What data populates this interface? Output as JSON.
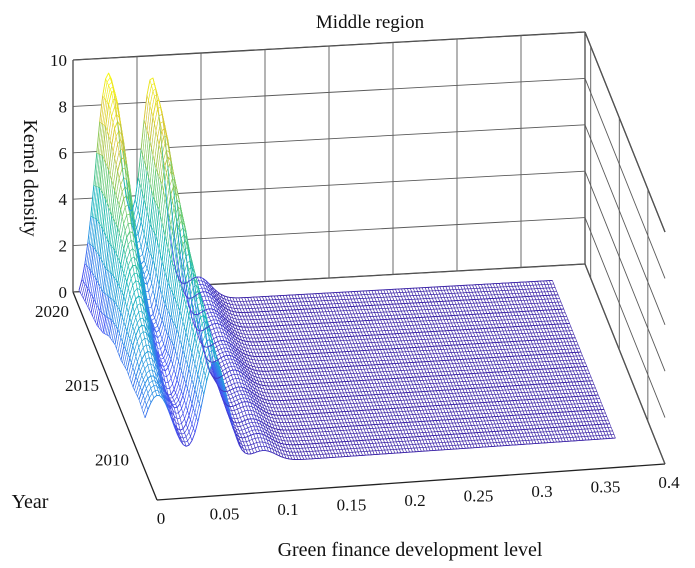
{
  "chart_data": {
    "type": "surface",
    "title": "Middle region",
    "xlabel": "Green finance development level",
    "ylabel": "Year",
    "zlabel": "Kernel density",
    "x_ticks": [
      "0",
      "0.05",
      "0.1",
      "0.15",
      "0.2",
      "0.25",
      "0.3",
      "0.35",
      "0.4"
    ],
    "y_ticks": [
      "2010",
      "2015",
      "2020"
    ],
    "z_ticks": [
      "0",
      "2",
      "4",
      "6",
      "8",
      "10"
    ],
    "xlim": [
      0,
      0.4
    ],
    "ylim": [
      2007,
      2021
    ],
    "zlim": [
      0,
      10
    ],
    "grid": true,
    "colormap": [
      "#3e26a8",
      "#4754f5",
      "#2a97e3",
      "#15b8b8",
      "#6bcb6b",
      "#d6c43b",
      "#f9fb15"
    ],
    "years": [
      2009,
      2010,
      2011,
      2012,
      2013,
      2014,
      2015,
      2016,
      2017,
      2018,
      2019,
      2020
    ],
    "density_profiles": [
      {
        "year": 2009,
        "peaks": [
          [
            0.01,
            3.2,
            0.012
          ],
          [
            0.055,
            4.5,
            0.01
          ],
          [
            0.093,
            0.5,
            0.01
          ]
        ]
      },
      {
        "year": 2010,
        "peaks": [
          [
            0.01,
            3.4,
            0.012
          ],
          [
            0.055,
            4.8,
            0.01
          ],
          [
            0.093,
            0.6,
            0.01
          ]
        ]
      },
      {
        "year": 2011,
        "peaks": [
          [
            0.012,
            3.8,
            0.012
          ],
          [
            0.055,
            5.2,
            0.01
          ],
          [
            0.093,
            0.6,
            0.01
          ]
        ]
      },
      {
        "year": 2012,
        "peaks": [
          [
            0.012,
            4.3,
            0.011
          ],
          [
            0.055,
            5.6,
            0.01
          ],
          [
            0.093,
            0.7,
            0.01
          ]
        ]
      },
      {
        "year": 2013,
        "peaks": [
          [
            0.014,
            4.9,
            0.011
          ],
          [
            0.055,
            6.0,
            0.01
          ],
          [
            0.093,
            0.7,
            0.01
          ]
        ]
      },
      {
        "year": 2014,
        "peaks": [
          [
            0.015,
            5.6,
            0.011
          ],
          [
            0.055,
            6.5,
            0.009
          ],
          [
            0.093,
            0.8,
            0.01
          ]
        ]
      },
      {
        "year": 2015,
        "peaks": [
          [
            0.017,
            6.4,
            0.011
          ],
          [
            0.056,
            7.0,
            0.009
          ],
          [
            0.093,
            0.8,
            0.01
          ]
        ]
      },
      {
        "year": 2016,
        "peaks": [
          [
            0.018,
            7.3,
            0.01
          ],
          [
            0.056,
            7.6,
            0.009
          ],
          [
            0.093,
            0.8,
            0.01
          ]
        ]
      },
      {
        "year": 2017,
        "peaks": [
          [
            0.02,
            8.3,
            0.01
          ],
          [
            0.056,
            8.2,
            0.009
          ],
          [
            0.093,
            0.9,
            0.01
          ]
        ]
      },
      {
        "year": 2018,
        "peaks": [
          [
            0.021,
            9.2,
            0.01
          ],
          [
            0.057,
            8.8,
            0.009
          ],
          [
            0.093,
            0.9,
            0.01
          ]
        ]
      },
      {
        "year": 2019,
        "peaks": [
          [
            0.022,
            9.9,
            0.01
          ],
          [
            0.057,
            9.4,
            0.009
          ],
          [
            0.093,
            1.0,
            0.01
          ]
        ]
      },
      {
        "year": 2020,
        "peaks": [
          [
            0.023,
            10.0,
            0.01
          ],
          [
            0.057,
            9.7,
            0.009
          ],
          [
            0.093,
            1.0,
            0.01
          ]
        ]
      }
    ]
  }
}
